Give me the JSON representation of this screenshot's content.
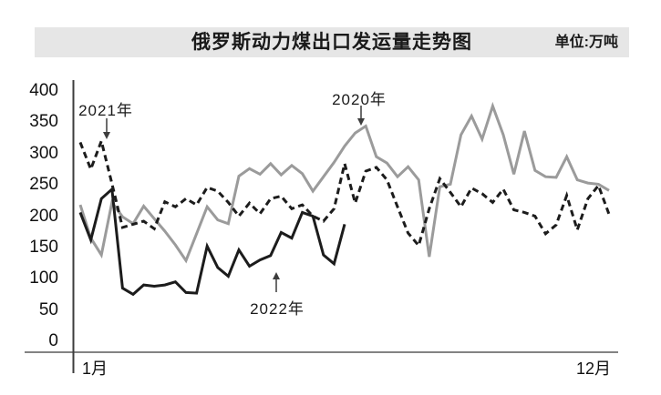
{
  "header": {
    "title": "俄罗斯动力煤出口发运量走势图",
    "unit": "单位:万吨"
  },
  "axis": {
    "y_ticks": [
      400,
      350,
      300,
      250,
      200,
      150,
      100,
      50,
      0
    ],
    "x_start_label": "1月",
    "x_end_label": "12月"
  },
  "annotations": {
    "y2020": "2020年",
    "y2021": "2021年",
    "y2022": "2022年"
  },
  "colors": {
    "band_bg": "#e6e6e6",
    "axis": "#444444",
    "gray_series": "#9b9b9b",
    "black_series": "#1c1c1c"
  },
  "chart_data": {
    "type": "line",
    "title": "俄罗斯动力煤出口发运量走势图",
    "unit": "万吨",
    "x_axis_note": "weekly points from 1月 to 12月",
    "ylim": [
      0,
      400
    ],
    "y_tick_step": 50,
    "grid": false,
    "legend": "inline-arrow-annotations",
    "series": [
      {
        "name": "2020年",
        "style": "solid",
        "color": "#9b9b9b",
        "values": [
          218,
          165,
          138,
          222,
          199,
          188,
          216,
          196,
          176,
          154,
          129,
          172,
          215,
          194,
          188,
          264,
          276,
          267,
          284,
          266,
          281,
          268,
          240,
          263,
          286,
          312,
          333,
          344,
          295,
          285,
          263,
          279,
          258,
          135,
          247,
          251,
          330,
          360,
          323,
          376,
          330,
          267,
          336,
          273,
          263,
          262,
          295,
          258,
          253,
          251,
          241
        ]
      },
      {
        "name": "2021年",
        "style": "dashed",
        "color": "#1c1c1c",
        "values": [
          318,
          275,
          320,
          252,
          182,
          187,
          192,
          180,
          223,
          215,
          228,
          218,
          246,
          240,
          222,
          200,
          221,
          204,
          228,
          232,
          212,
          218,
          200,
          192,
          212,
          284,
          221,
          272,
          278,
          258,
          215,
          173,
          153,
          212,
          260,
          238,
          215,
          245,
          236,
          222,
          243,
          210,
          206,
          200,
          172,
          186,
          233,
          178,
          228,
          249,
          203
        ]
      },
      {
        "name": "2022年",
        "style": "solid",
        "color": "#1c1c1c",
        "values": [
          206,
          162,
          228,
          243,
          85,
          75,
          90,
          88,
          90,
          95,
          78,
          77,
          152,
          118,
          104,
          146,
          120,
          130,
          137,
          174,
          165,
          206,
          200,
          138,
          124,
          187
        ]
      }
    ]
  }
}
